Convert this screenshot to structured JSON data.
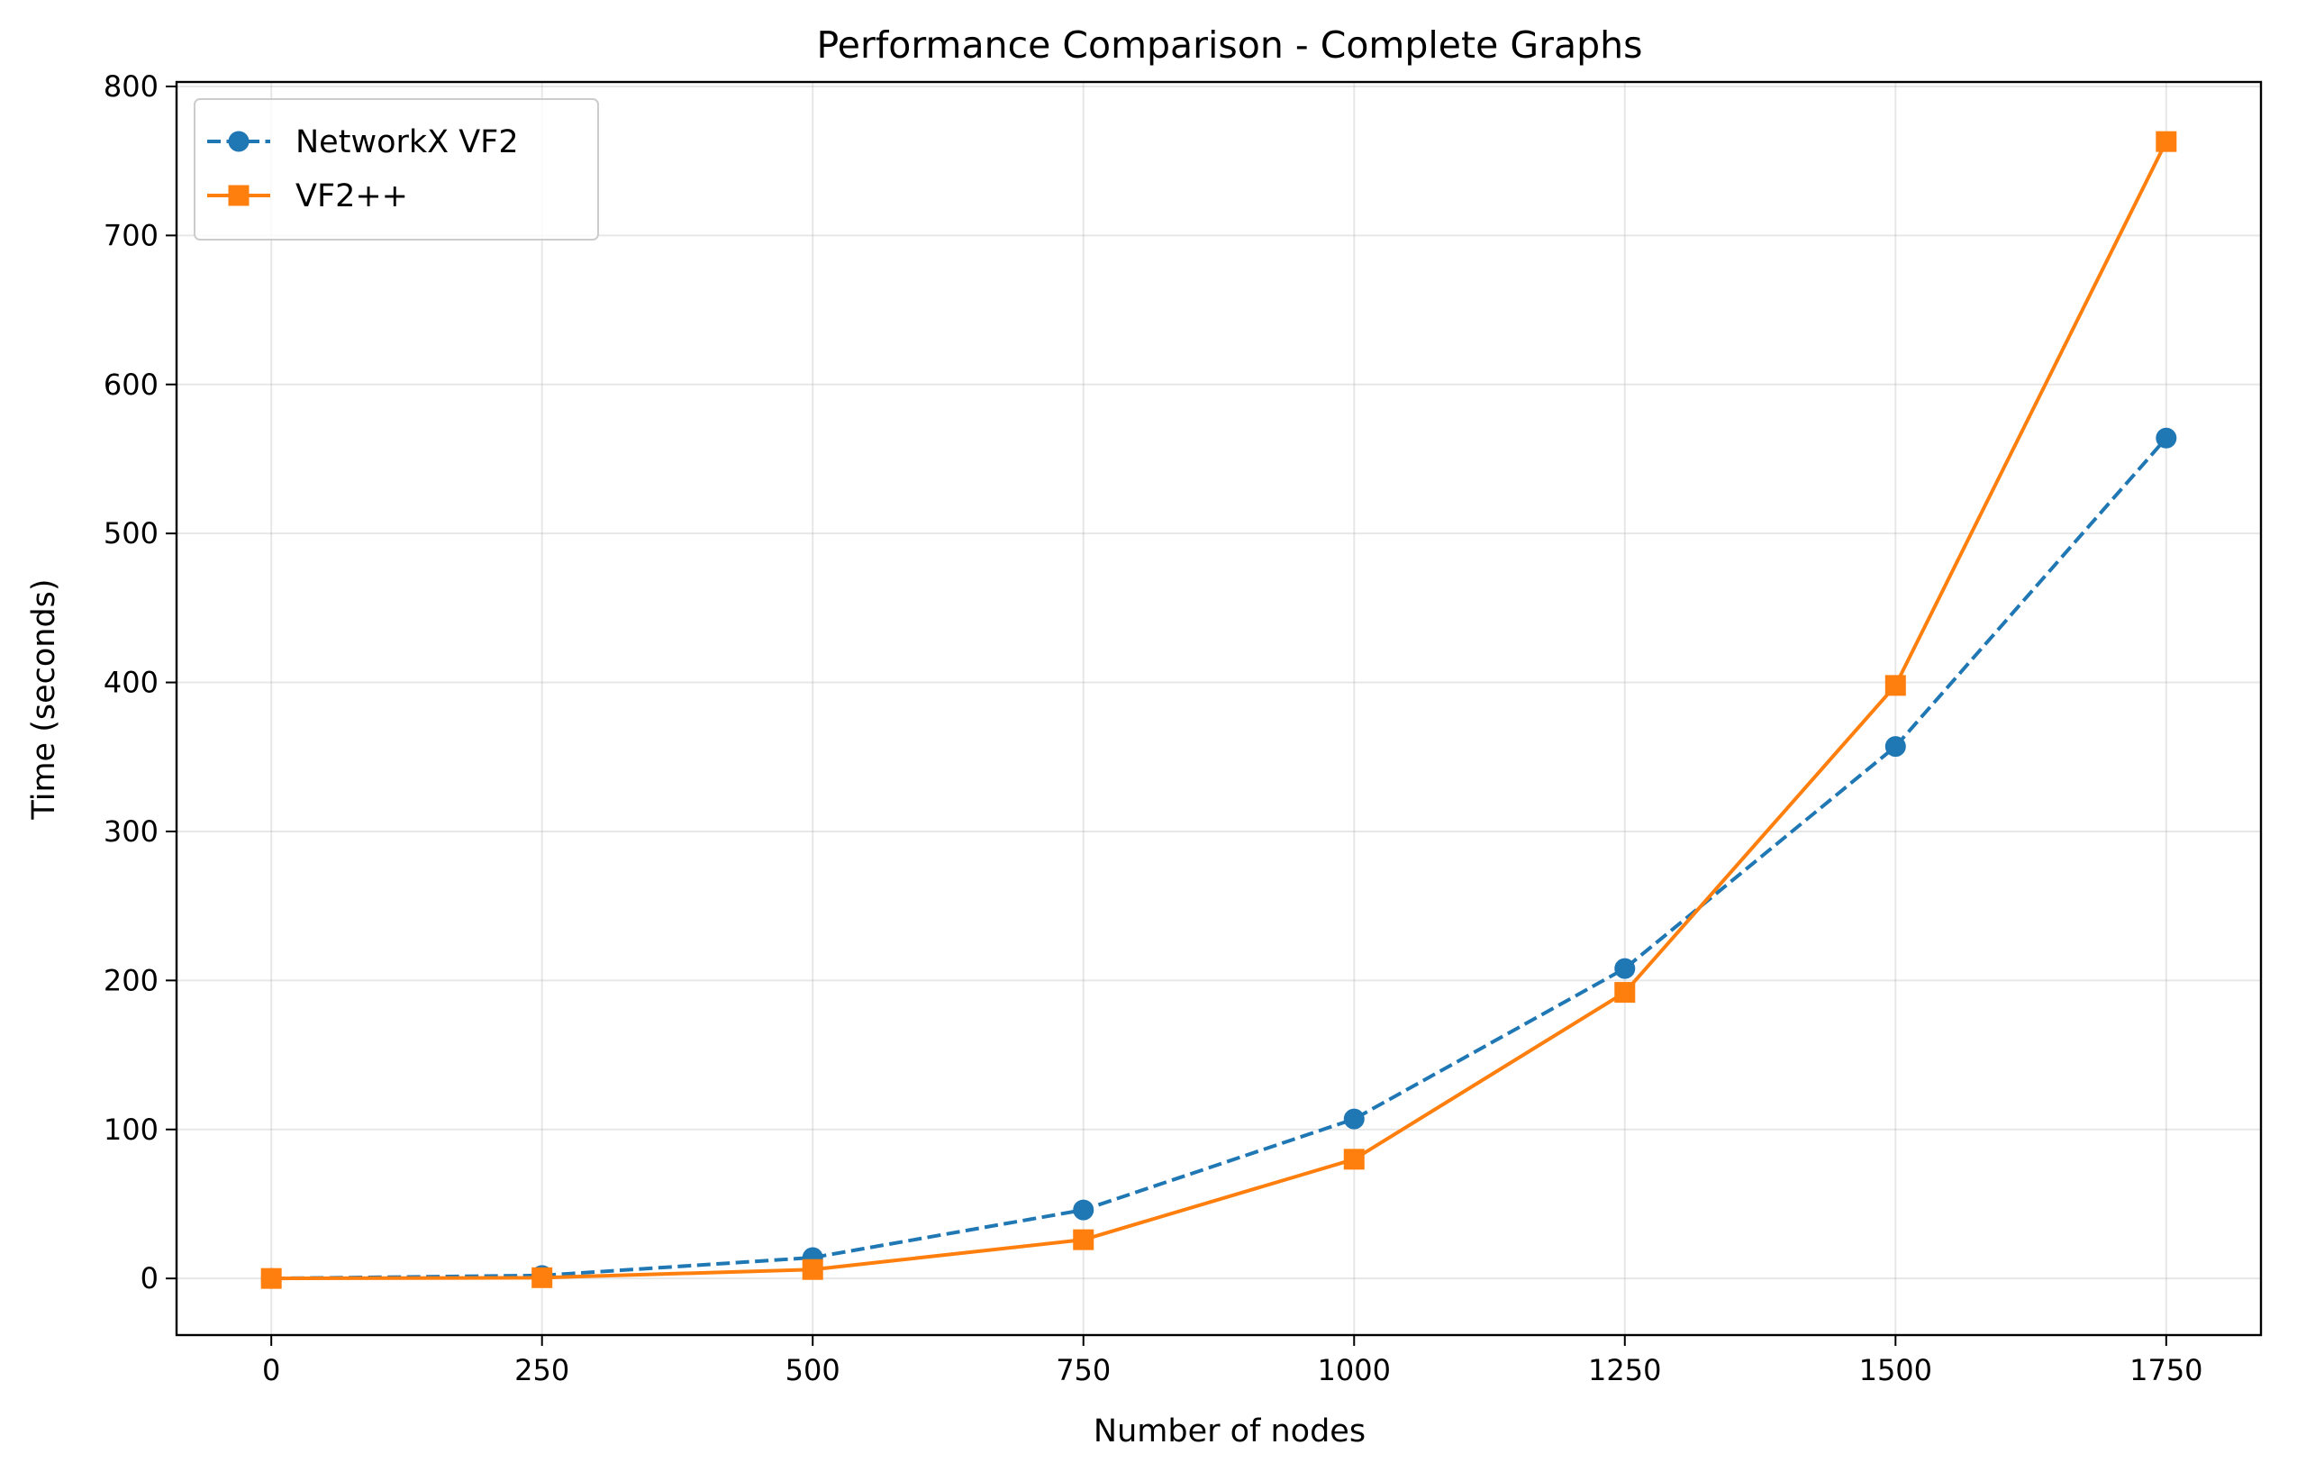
{
  "chart_data": {
    "type": "line",
    "title": "Performance Comparison - Complete Graphs",
    "xlabel": "Number of nodes",
    "ylabel": "Time (seconds)",
    "x": [
      0,
      250,
      500,
      750,
      1000,
      1250,
      1500,
      1750
    ],
    "xlim": [
      -87.5,
      1837.5
    ],
    "ylim": [
      -38,
      803
    ],
    "xticks": [
      0,
      250,
      500,
      750,
      1000,
      1250,
      1500,
      1750
    ],
    "yticks": [
      0,
      100,
      200,
      300,
      400,
      500,
      600,
      700,
      800
    ],
    "grid": true,
    "legend_position": "top-left",
    "series": [
      {
        "name": "NetworkX VF2",
        "values": [
          0.0,
          2.0,
          14.0,
          46.0,
          107.0,
          208.0,
          357.0,
          564.0
        ],
        "color": "#1f77b4",
        "line_style": "dashed",
        "marker": "circle"
      },
      {
        "name": "VF2++",
        "values": [
          0.0,
          0.5,
          6.0,
          26.0,
          80.0,
          192.0,
          398.0,
          763.0
        ],
        "color": "#ff7f0e",
        "line_style": "solid",
        "marker": "square"
      }
    ]
  }
}
